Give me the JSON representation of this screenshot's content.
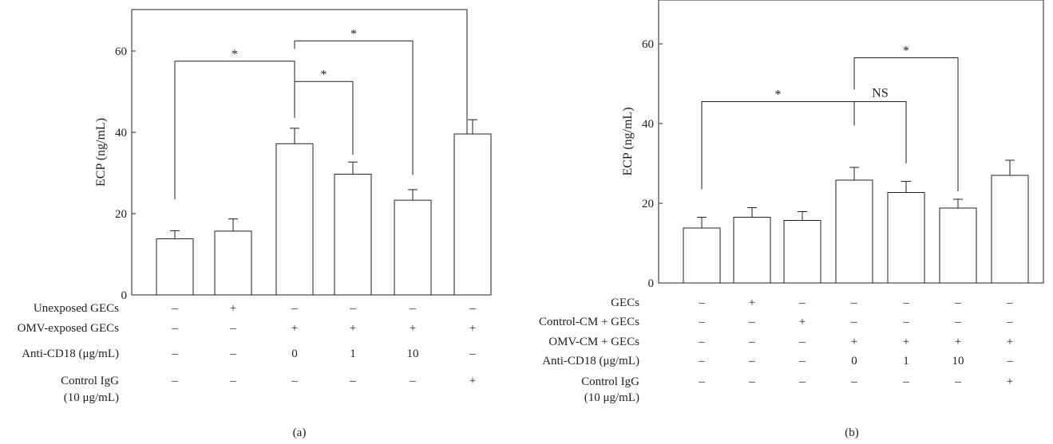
{
  "chart_data": [
    {
      "type": "bar",
      "caption": "(a)",
      "ylabel": "ECP (ng/mL)",
      "ylim": [
        0,
        70
      ],
      "yticks": [
        0,
        20,
        40,
        60
      ],
      "categories": [
        "1",
        "2",
        "3",
        "4",
        "5",
        "6"
      ],
      "values": [
        13.8,
        15.7,
        37.2,
        29.7,
        23.3,
        39.6
      ],
      "errors": [
        2.0,
        3.0,
        3.8,
        3.0,
        2.6,
        3.5
      ],
      "conditions": [
        {
          "label": "Unexposed GECs",
          "values": [
            "–",
            "+",
            "–",
            "–",
            "–",
            "–"
          ]
        },
        {
          "label": "OMV-exposed GECs",
          "values": [
            "–",
            "–",
            "+",
            "+",
            "+",
            "+"
          ]
        },
        {
          "label": "Anti-CD18 (μg/mL)",
          "values": [
            "–",
            "–",
            "0",
            "1",
            "10",
            "–"
          ]
        },
        {
          "label": "Control IgG",
          "label2": "(10 μg/mL)",
          "values": [
            "–",
            "–",
            "–",
            "–",
            "–",
            "+"
          ]
        }
      ],
      "significance": [
        {
          "from": 0,
          "to": 2,
          "label": "*",
          "y": 57.5,
          "from_end": 23.5,
          "to_end": 43.5
        },
        {
          "from": 2,
          "to": 3,
          "label": "*",
          "y": 52.5,
          "from_end": 45.5,
          "to_end": 34.5
        },
        {
          "from": 2,
          "to": 4,
          "label": "*",
          "y": 62.5,
          "from_end": 60.5,
          "to_end": 29.5
        }
      ],
      "grid": false
    },
    {
      "type": "bar",
      "caption": "(b)",
      "ylabel": "ECP (ng/mL)",
      "ylim": [
        0,
        70
      ],
      "yticks": [
        0,
        20,
        40,
        60
      ],
      "categories": [
        "1",
        "2",
        "3",
        "4",
        "5",
        "6",
        "7"
      ],
      "values": [
        13.8,
        16.5,
        15.7,
        25.8,
        22.7,
        18.8,
        27.0
      ],
      "errors": [
        2.7,
        2.4,
        2.2,
        3.2,
        2.8,
        2.2,
        3.8
      ],
      "conditions": [
        {
          "label": "GECs",
          "values": [
            "–",
            "+",
            "–",
            "–",
            "–",
            "–",
            "–"
          ]
        },
        {
          "label": "Control-CM + GECs",
          "values": [
            "–",
            "–",
            "+",
            "–",
            "–",
            "–",
            "–"
          ]
        },
        {
          "label": "OMV-CM + GECs",
          "values": [
            "–",
            "–",
            "–",
            "+",
            "+",
            "+",
            "+"
          ]
        },
        {
          "label": "Anti-CD18 (μg/mL)",
          "values": [
            "–",
            "–",
            "–",
            "0",
            "1",
            "10",
            "–"
          ]
        },
        {
          "label": "Control IgG",
          "label2": "(10 μg/mL)",
          "values": [
            "–",
            "–",
            "–",
            "–",
            "–",
            "–",
            "+"
          ]
        }
      ],
      "significance": [
        {
          "from": 0,
          "to": 3,
          "label": "*",
          "y": 45.5,
          "from_end": 23.5,
          "to_end": 39.5
        },
        {
          "from": 3,
          "to": 4,
          "label": "NS",
          "y": 45.5,
          "from_end": 39.5,
          "to_end": 30.0
        },
        {
          "from": 3,
          "to": 5,
          "label": "*",
          "y": 56.5,
          "from_end": 48.5,
          "to_end": 23.0
        }
      ],
      "grid": false
    }
  ]
}
